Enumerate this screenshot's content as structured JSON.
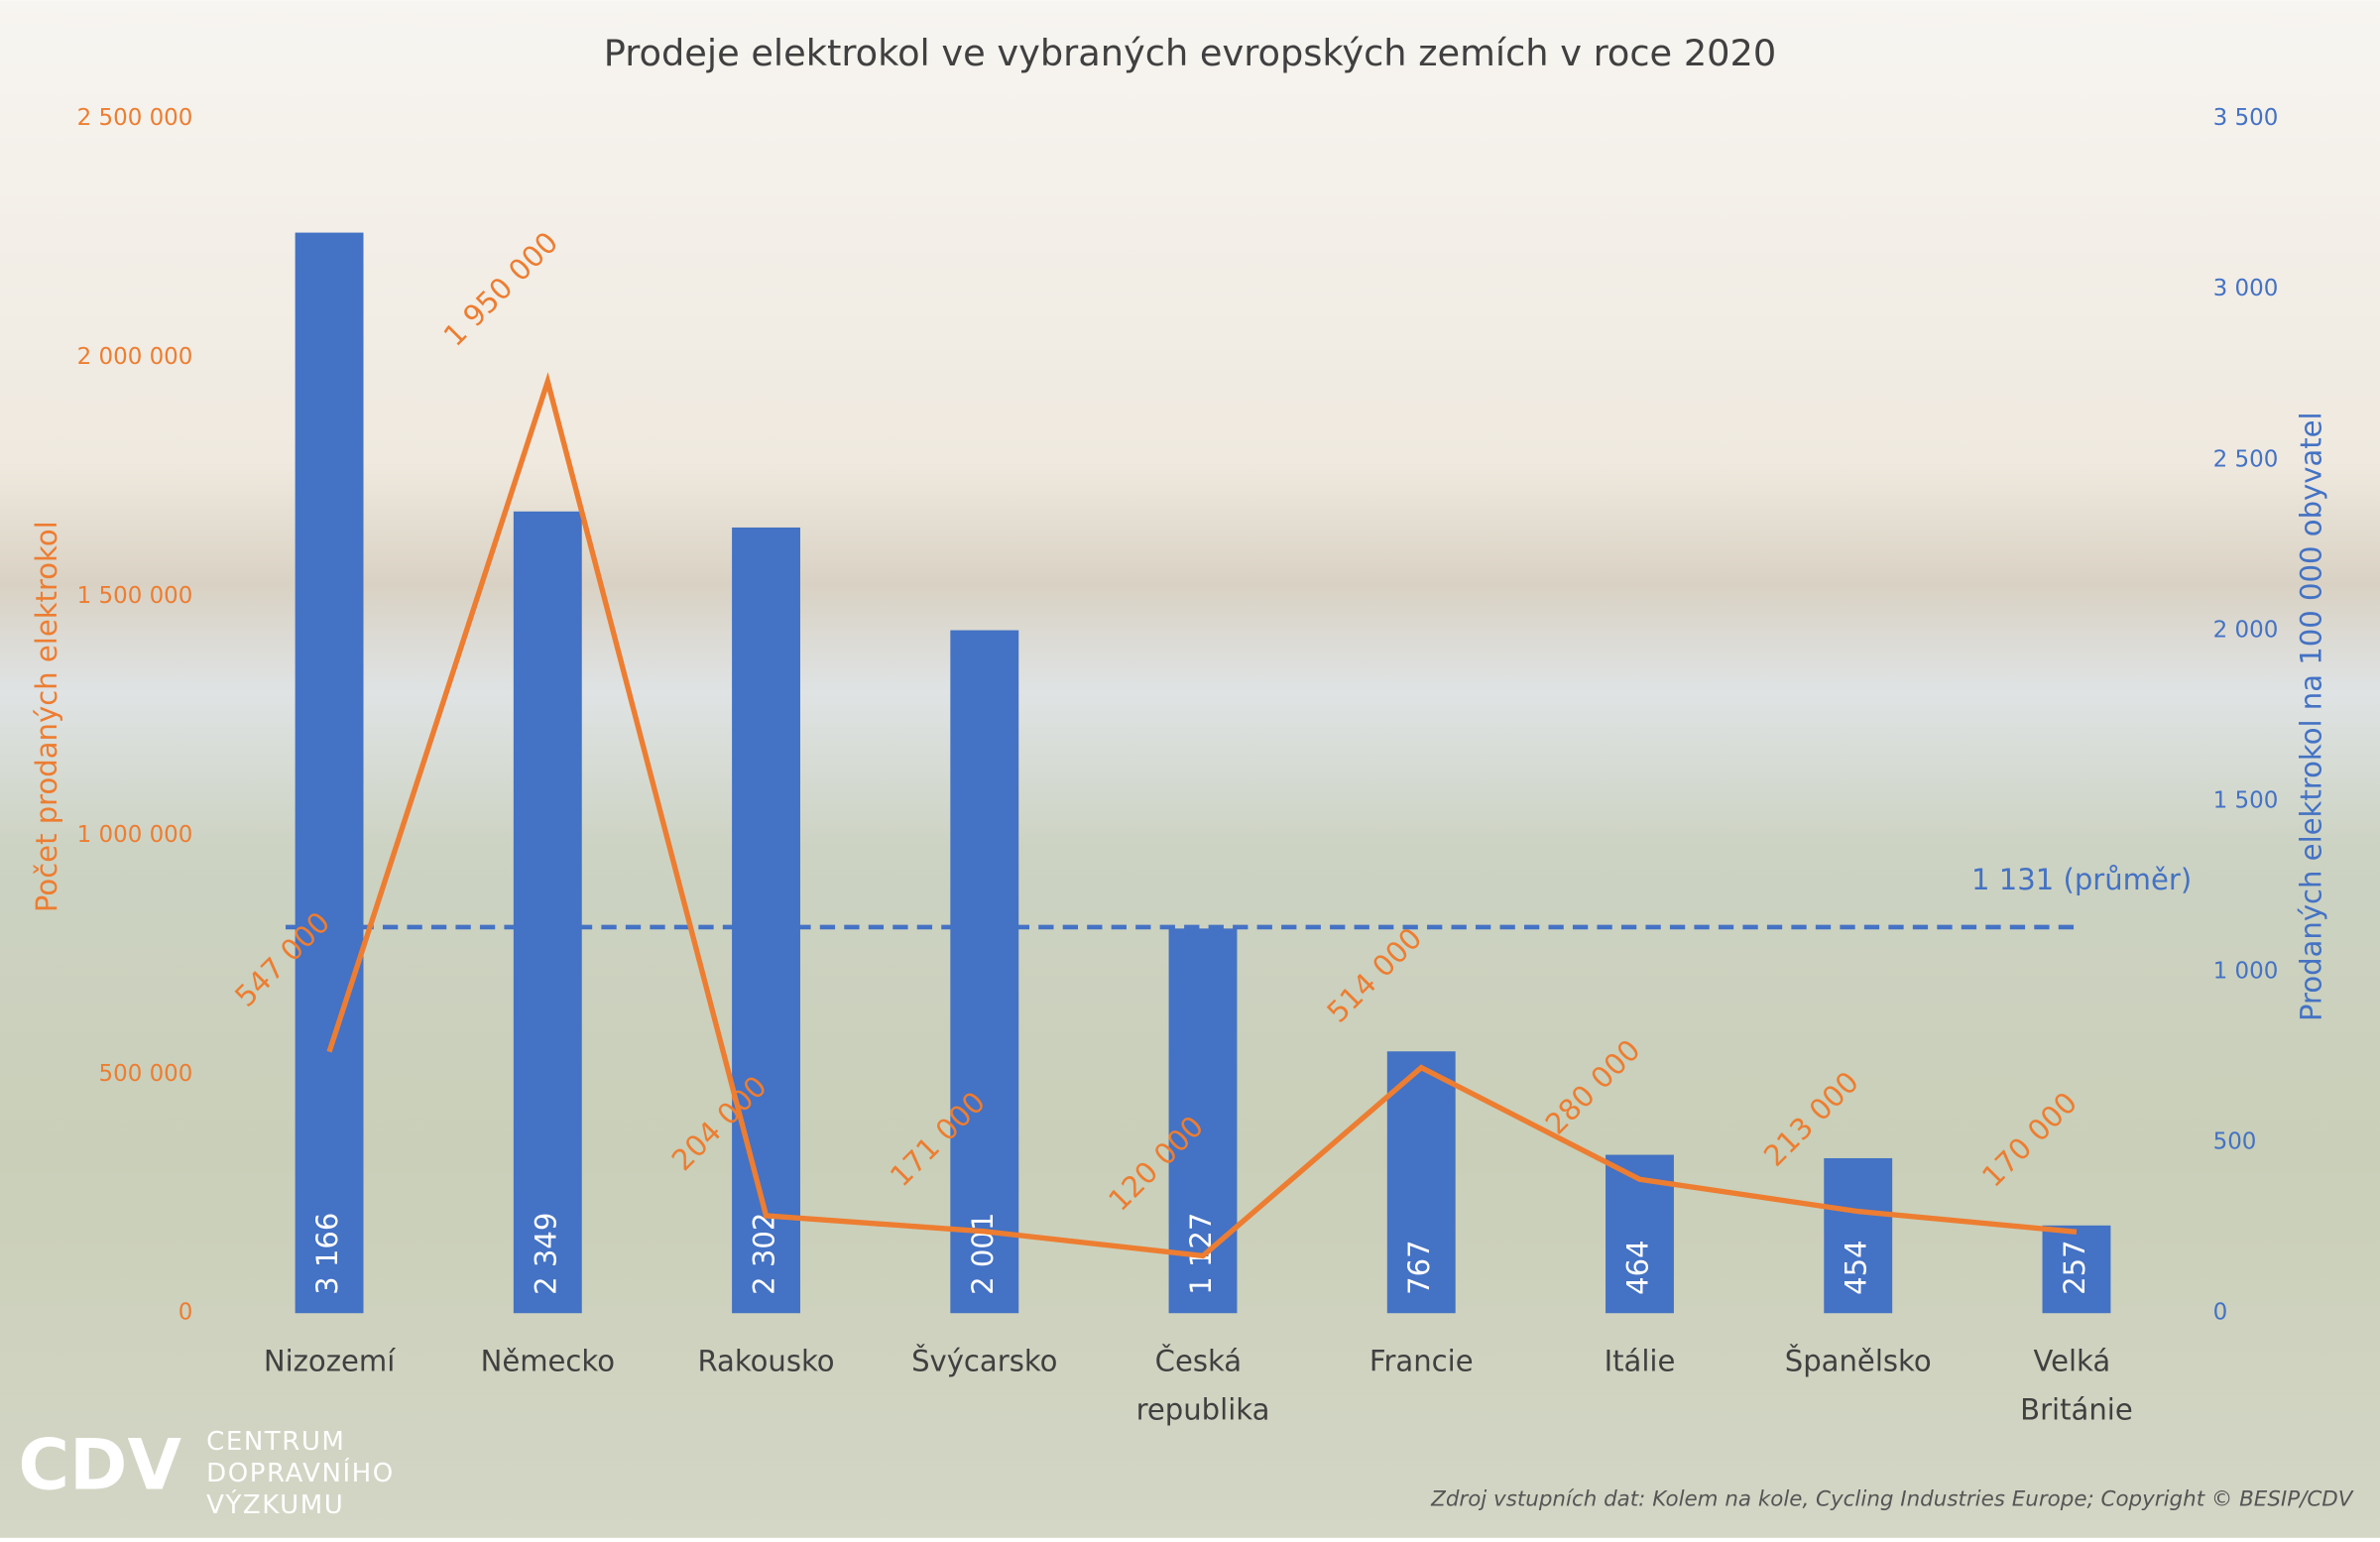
{
  "chart_data": {
    "type": "bar-line",
    "title": "Prodeje elektrokol ve vybraných evropských zemích v roce 2020",
    "categories": [
      "Nizozemí",
      "Německo",
      "Rakousko",
      "Švýcarsko",
      "Česká republika",
      "Francie",
      "Itálie",
      "Španělsko",
      "Velká Británie"
    ],
    "series": [
      {
        "name": "Prodaných elektrokol na 100 000 obyvatel",
        "type": "bar",
        "axis": "y2",
        "color": "#4472c4",
        "values": [
          3166,
          2349,
          2302,
          2001,
          1127,
          767,
          464,
          454,
          257
        ],
        "value_labels": [
          "3 166",
          "2 349",
          "2 302",
          "2 001",
          "1 127",
          "767",
          "464",
          "454",
          "257"
        ]
      },
      {
        "name": "Počet prodaných elektrokol",
        "type": "line",
        "axis": "y",
        "color": "#ed7d31",
        "values": [
          547000,
          1950000,
          204000,
          171000,
          120000,
          514000,
          280000,
          213000,
          170000
        ],
        "value_labels": [
          "547 000",
          "1 950 000",
          "204 000",
          "171 000",
          "120 000",
          "514 000",
          "280 000",
          "213 000",
          "170 000"
        ]
      }
    ],
    "ylabel": "Počet prodaných elektrokol",
    "y2label": "Prodaných elektrokol na 100 000 obyvatel",
    "ylim": [
      0,
      2500000
    ],
    "yticks": [
      0,
      {
        "value": 500000,
        "label": "500 000"
      },
      {
        "value": 1000000,
        "label": "1 000 000"
      },
      {
        "value": 1500000,
        "label": "1 500 000"
      },
      {
        "value": 2000000,
        "label": "2 000 000"
      },
      {
        "value": 2500000,
        "label": "2 500 000"
      }
    ],
    "y2lim": [
      0,
      3500
    ],
    "y2ticks": [
      0,
      500,
      {
        "value": 1000,
        "label": "1 000"
      },
      {
        "value": 1500,
        "label": "1 500"
      },
      {
        "value": 2000,
        "label": "2 000"
      },
      {
        "value": 2500,
        "label": "2 500"
      },
      {
        "value": 3000,
        "label": "3 000"
      },
      {
        "value": 3500,
        "label": "3 500"
      }
    ],
    "reference_line": {
      "value": 1131,
      "label": "1 131 (průměr)",
      "axis": "y2",
      "color": "#4472c4"
    },
    "source": "Zdroj vstupních dat: Kolem na kole, Cycling Industries Europe; Copyright © BESIP/CDV",
    "logo": {
      "mark": "CDV",
      "lines": [
        "CENTRUM",
        "DOPRAVNÍHO",
        "VÝZKUMU"
      ]
    }
  }
}
